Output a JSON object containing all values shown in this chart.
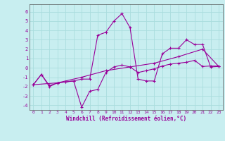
{
  "xlabel": "Windchill (Refroidissement éolien,°C)",
  "bg_color": "#c8eef0",
  "grid_color": "#aadddd",
  "line_color": "#990099",
  "xlim": [
    -0.5,
    23.5
  ],
  "ylim": [
    -4.5,
    6.8
  ],
  "xticks": [
    0,
    1,
    2,
    3,
    4,
    5,
    6,
    7,
    8,
    9,
    10,
    11,
    12,
    13,
    14,
    15,
    16,
    17,
    18,
    19,
    20,
    21,
    22,
    23
  ],
  "yticks": [
    -4,
    -3,
    -2,
    -1,
    0,
    1,
    2,
    3,
    4,
    5,
    6
  ],
  "line1_x": [
    0,
    1,
    2,
    3,
    4,
    5,
    6,
    7,
    8,
    9,
    10,
    11,
    12,
    13,
    14,
    15,
    16,
    17,
    18,
    19,
    20,
    21,
    22,
    23
  ],
  "line1_y": [
    -1.8,
    -0.7,
    -2.0,
    -1.6,
    -1.5,
    -1.4,
    -1.2,
    -1.2,
    3.5,
    3.8,
    5.0,
    5.8,
    4.3,
    -1.2,
    -1.4,
    -1.4,
    1.5,
    2.1,
    2.1,
    3.0,
    2.5,
    2.5,
    0.1,
    0.15
  ],
  "line2_x": [
    0,
    1,
    2,
    3,
    4,
    5,
    6,
    7,
    8,
    9,
    10,
    11,
    12,
    13,
    14,
    15,
    16,
    17,
    18,
    19,
    20,
    21,
    22,
    23
  ],
  "line2_y": [
    -1.8,
    -0.7,
    -1.9,
    -1.6,
    -1.5,
    -1.4,
    -4.2,
    -2.5,
    -2.3,
    -0.5,
    0.1,
    0.3,
    0.1,
    -0.5,
    -0.3,
    -0.1,
    0.2,
    0.4,
    0.5,
    0.6,
    0.8,
    0.15,
    0.2,
    0.2
  ],
  "line3_x": [
    0,
    3,
    6,
    9,
    12,
    15,
    18,
    21,
    23
  ],
  "line3_y": [
    -1.8,
    -1.6,
    -1.0,
    -0.3,
    0.1,
    0.5,
    1.2,
    2.0,
    0.15
  ]
}
